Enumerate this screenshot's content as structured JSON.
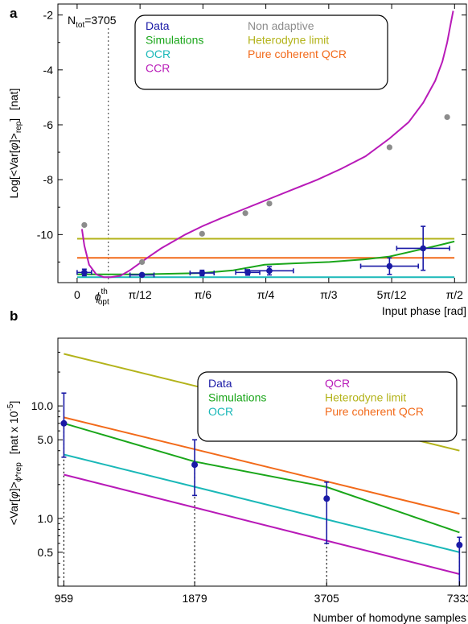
{
  "colors": {
    "Data": "#1a1aa6",
    "Simulations": "#1aa61a",
    "OCR": "#1ab8b8",
    "CCR": "#b81ab8",
    "QCR": "#b81ab8",
    "Non adaptive": "#8c8c8c",
    "Heterodyne limit": "#b3b31a",
    "Pure coherent QCR": "#f26a1a"
  },
  "chart_data": [
    {
      "panel": "a",
      "type": "line",
      "annotation": "N",
      "annotation_sub": "tot",
      "annotation_value": "=3705",
      "ylabel_parts": [
        "Log[<Var[",
        "φ",
        "]>",
        "rep",
        "]",
        "[nat]"
      ],
      "xlabel": "Input phase [rad]",
      "xlim": [
        -0.08,
        1.62
      ],
      "ylim": [
        -11.75,
        -1.6
      ],
      "x_ticks": [
        {
          "v": 0.0,
          "label": "0"
        },
        {
          "v": 0.2618,
          "label": "π/12"
        },
        {
          "v": 0.5236,
          "label": "π/6"
        },
        {
          "v": 0.7854,
          "label": "π/4"
        },
        {
          "v": 1.0472,
          "label": "π/3"
        },
        {
          "v": 1.309,
          "label": "5π/12"
        },
        {
          "v": 1.5708,
          "label": "π/2"
        }
      ],
      "y_ticks": [
        {
          "v": -2,
          "label": "-2"
        },
        {
          "v": -4,
          "label": "-4"
        },
        {
          "v": -6,
          "label": "-6"
        },
        {
          "v": -8,
          "label": "-8"
        },
        {
          "v": -10,
          "label": "-10"
        }
      ],
      "phi_opt": {
        "x": 0.13,
        "label": "ϕ",
        "sup": "th",
        "sub": "opt"
      },
      "legend": {
        "left": [
          "Data",
          "Simulations",
          "OCR",
          "CCR"
        ],
        "right": [
          "Non adaptive",
          "Heterodyne limit",
          "Pure coherent QCR"
        ]
      },
      "series": [
        {
          "name": "Heterodyne limit",
          "kind": "line",
          "x": [
            0.0,
            1.57
          ],
          "y": [
            -10.15,
            -10.15
          ]
        },
        {
          "name": "Pure coherent QCR",
          "kind": "line",
          "x": [
            0.0,
            1.57
          ],
          "y": [
            -10.85,
            -10.85
          ]
        },
        {
          "name": "OCR",
          "kind": "line",
          "x": [
            0.0,
            1.57
          ],
          "y": [
            -11.55,
            -11.55
          ]
        },
        {
          "name": "Simulations",
          "kind": "line",
          "x": [
            0.0,
            0.26,
            0.52,
            0.65,
            0.78,
            0.9,
            1.05,
            1.2,
            1.3,
            1.4,
            1.5,
            1.57
          ],
          "y": [
            -11.45,
            -11.45,
            -11.4,
            -11.3,
            -11.1,
            -11.05,
            -11.0,
            -10.9,
            -10.8,
            -10.6,
            -10.4,
            -10.25
          ]
        },
        {
          "name": "CCR",
          "kind": "line",
          "x": [
            0.02,
            0.03,
            0.05,
            0.08,
            0.11,
            0.14,
            0.18,
            0.22,
            0.26,
            0.3,
            0.35,
            0.4,
            0.45,
            0.52,
            0.6,
            0.7,
            0.8,
            0.9,
            1.0,
            1.1,
            1.2,
            1.3,
            1.38,
            1.44,
            1.49,
            1.52,
            1.54,
            1.555,
            1.565
          ],
          "y": [
            -9.8,
            -10.4,
            -11.1,
            -11.45,
            -11.55,
            -11.55,
            -11.5,
            -11.3,
            -11.05,
            -10.8,
            -10.5,
            -10.25,
            -10.0,
            -9.7,
            -9.4,
            -9.05,
            -8.7,
            -8.35,
            -8.0,
            -7.6,
            -7.15,
            -6.5,
            -5.9,
            -5.2,
            -4.4,
            -3.7,
            -3.0,
            -2.3,
            -1.85
          ]
        },
        {
          "name": "Non adaptive",
          "kind": "scatter",
          "x": [
            0.03,
            0.27,
            0.52,
            0.7,
            0.8,
            1.3,
            1.54
          ],
          "y": [
            -9.65,
            -11.0,
            -9.97,
            -9.22,
            -8.87,
            -6.82,
            -5.72
          ]
        },
        {
          "name": "Data",
          "kind": "errorbar",
          "x": [
            0.03,
            0.27,
            0.52,
            0.71,
            0.8,
            1.3,
            1.44
          ],
          "y": [
            -11.38,
            -11.47,
            -11.4,
            -11.38,
            -11.32,
            -11.15,
            -10.5
          ],
          "xerr": [
            0.03,
            0.05,
            0.05,
            0.05,
            0.1,
            0.12,
            0.11
          ],
          "yerr": [
            0.12,
            0.05,
            0.1,
            0.1,
            0.15,
            0.3,
            0.8
          ]
        }
      ]
    },
    {
      "panel": "b",
      "type": "line",
      "ylabel_parts": [
        "<Var[",
        "φ",
        "]>",
        "ϕ*",
        "rep",
        "[nat x 10",
        "-5",
        "]"
      ],
      "xlabel": "Number of homodyne samples",
      "xscale": "log",
      "yscale": "log",
      "xlim": [
        930,
        7600
      ],
      "ylim": [
        0.25,
        40
      ],
      "x_ticks": [
        {
          "v": 959,
          "label": "959"
        },
        {
          "v": 1879,
          "label": "1879"
        },
        {
          "v": 3705,
          "label": "3705"
        },
        {
          "v": 7333,
          "label": "7333"
        }
      ],
      "y_ticks": [
        {
          "v": 0.5,
          "label": "0.5"
        },
        {
          "v": 1.0,
          "label": "1.0"
        },
        {
          "v": 5.0,
          "label": "5.0"
        },
        {
          "v": 10.0,
          "label": "10.0"
        }
      ],
      "legend": {
        "left": [
          "Data",
          "Simulations",
          "OCR"
        ],
        "right": [
          "QCR",
          "Heterodyne limit",
          "Pure coherent QCR"
        ]
      },
      "series": [
        {
          "name": "Heterodyne limit",
          "kind": "line",
          "x": [
            959,
            7333
          ],
          "y": [
            29,
            4.0
          ]
        },
        {
          "name": "Pure coherent QCR",
          "kind": "line",
          "x": [
            959,
            7333
          ],
          "y": [
            7.9,
            1.1
          ]
        },
        {
          "name": "Simulations",
          "kind": "line",
          "x": [
            959,
            1879,
            3705,
            7333
          ],
          "y": [
            7.0,
            3.2,
            1.9,
            0.75
          ]
        },
        {
          "name": "OCR",
          "kind": "line",
          "x": [
            959,
            7333
          ],
          "y": [
            3.7,
            0.5
          ]
        },
        {
          "name": "QCR",
          "kind": "line",
          "x": [
            959,
            7333
          ],
          "y": [
            2.45,
            0.32
          ]
        },
        {
          "name": "Data",
          "kind": "errorbar",
          "x": [
            959,
            1879,
            3705,
            7333
          ],
          "y": [
            7.0,
            3.0,
            1.5,
            0.58
          ],
          "yerr_lo": [
            3.5,
            1.6,
            0.6,
            0.08
          ],
          "yerr_hi": [
            13.0,
            5.0,
            2.1,
            0.68
          ]
        }
      ]
    }
  ]
}
